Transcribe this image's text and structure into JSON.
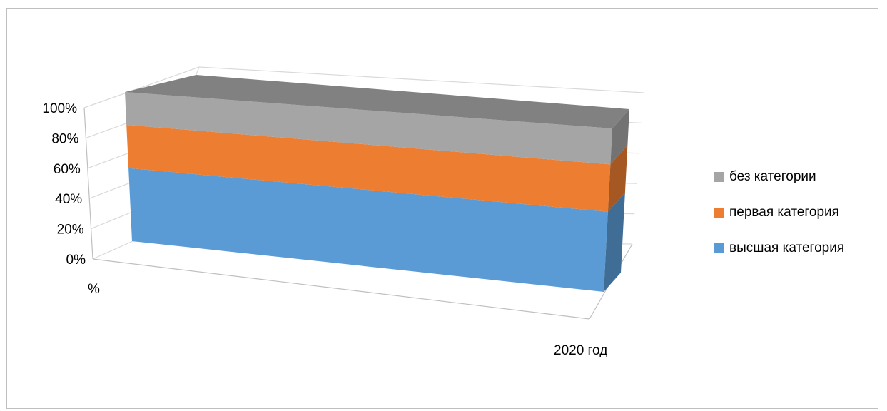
{
  "chart_data": {
    "type": "bar",
    "stacked": "percent",
    "three_d": true,
    "categories": [
      "2020 год"
    ],
    "series": [
      {
        "name": "высшая категория",
        "values": [
          49
        ],
        "color": "#5b9bd5"
      },
      {
        "name": "первая категория",
        "values": [
          29
        ],
        "color": "#ed7d31"
      },
      {
        "name": "без категории",
        "values": [
          22
        ],
        "color": "#a5a5a5"
      }
    ],
    "yticks": [
      "0%",
      "20%",
      "40%",
      "60%",
      "80%",
      "100%"
    ],
    "ylim": [
      0,
      100
    ],
    "ylabel": "%",
    "grid": true,
    "legend_position": "right"
  }
}
